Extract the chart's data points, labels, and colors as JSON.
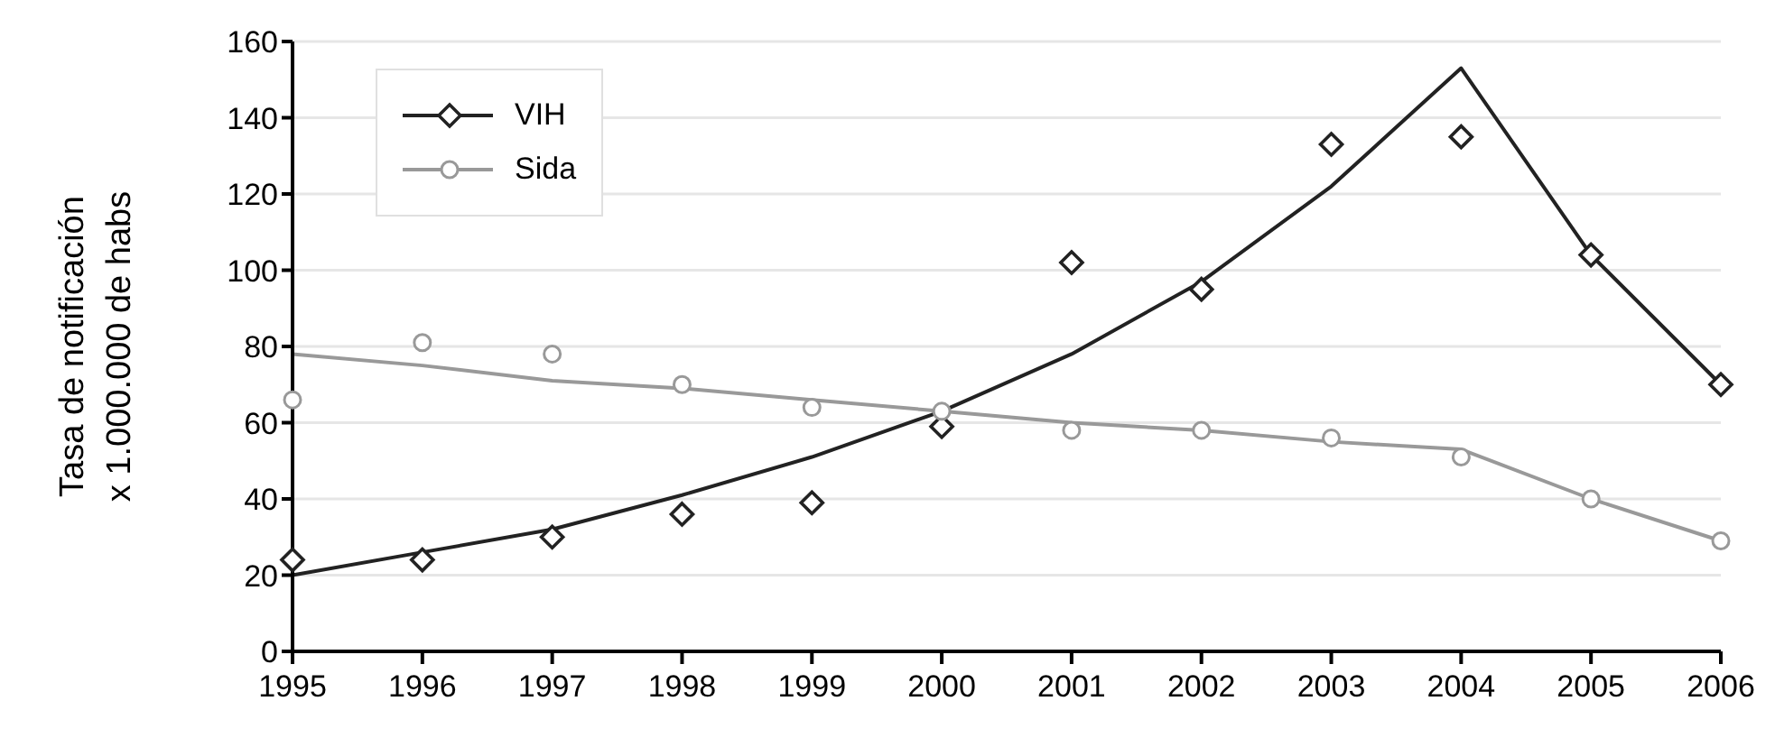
{
  "chart_data": {
    "type": "line",
    "ylabel": "Tasa de notificación\nx 1.000.000 de habs",
    "categories": [
      "1995",
      "1996",
      "1997",
      "1998",
      "1999",
      "2000",
      "2001",
      "2002",
      "2003",
      "2004",
      "2005",
      "2006"
    ],
    "series": [
      {
        "type": "scatter",
        "name": "VIH",
        "marker": "diamond",
        "color": "#222222",
        "values": [
          24,
          24,
          30,
          36,
          39,
          59,
          102,
          95,
          133,
          135,
          104,
          70
        ]
      },
      {
        "color": "#222222",
        "values": [
          20,
          26,
          32,
          41,
          51,
          63,
          78,
          97,
          122,
          153,
          104,
          70
        ]
      },
      {
        "type": "scatter",
        "name": "Sida",
        "marker": "circle",
        "color": "#999999",
        "values": [
          66,
          81,
          78,
          70,
          64,
          63,
          58,
          58,
          56,
          51,
          40,
          29
        ]
      },
      {
        "color": "#999999",
        "values": [
          78,
          75,
          71,
          69,
          66,
          63,
          60,
          58,
          55,
          53,
          40,
          29
        ]
      }
    ],
    "ylim": [
      0,
      160
    ],
    "yticks": [
      0,
      20,
      40,
      60,
      80,
      100,
      120,
      140,
      160
    ],
    "grid": "y",
    "legend": "top left"
  }
}
